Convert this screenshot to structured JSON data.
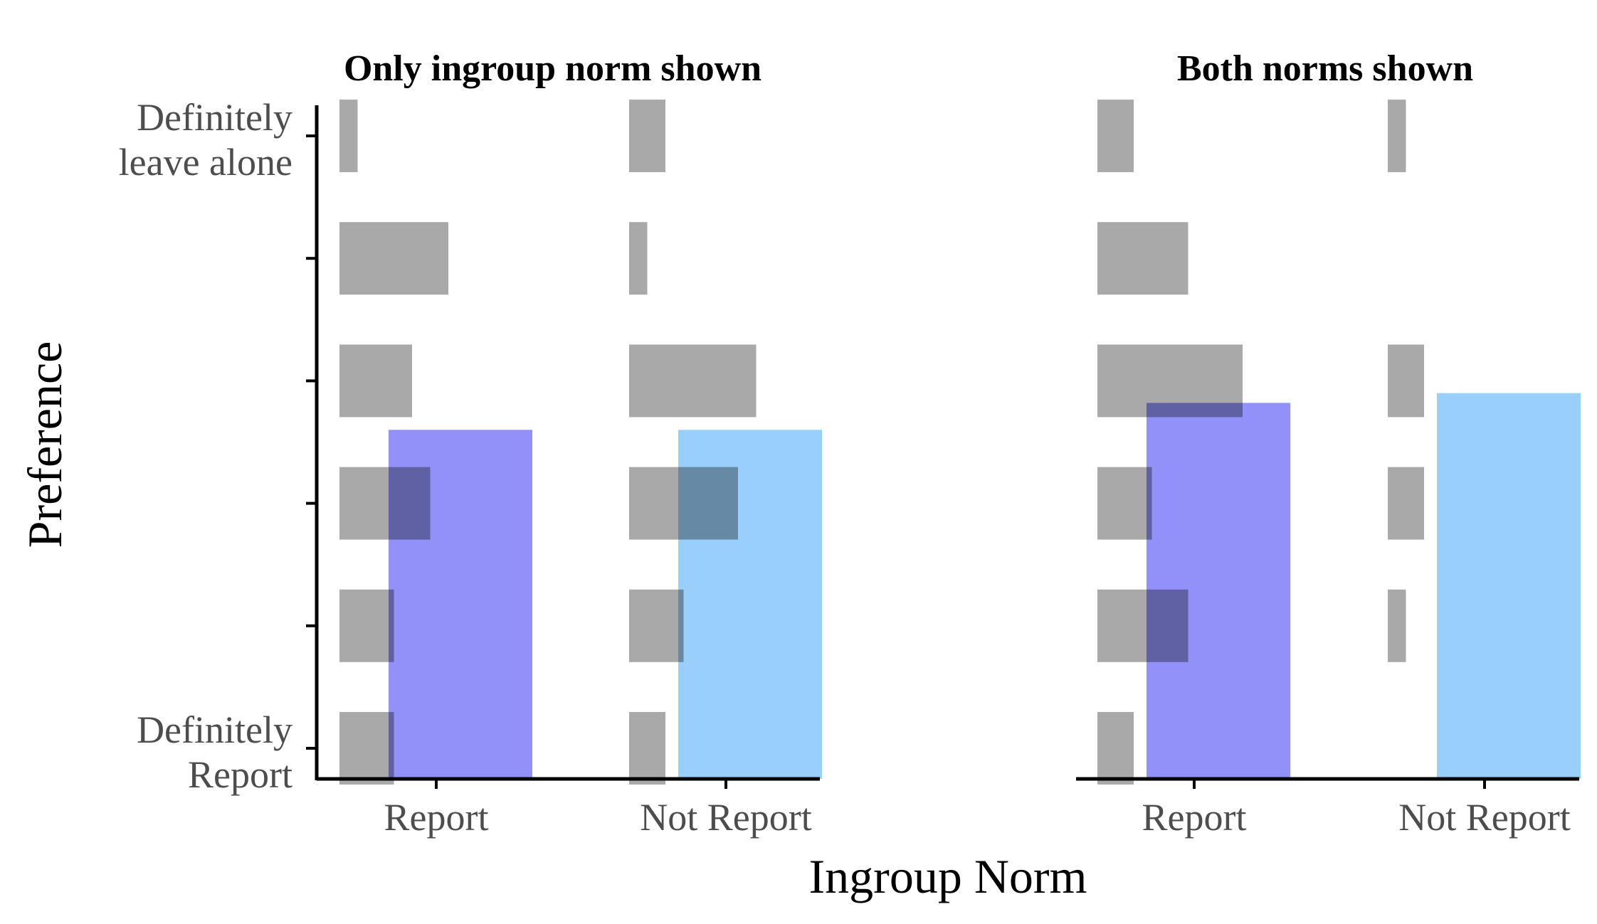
{
  "chart_data": {
    "type": "bar",
    "xlabel": "Ingroup Norm",
    "ylabel": "Preference",
    "y_tick_labels": [
      {
        "level": 1,
        "lines": [
          "Definitely",
          "Report"
        ]
      },
      {
        "level": 6,
        "lines": [
          "Definitely",
          "leave alone"
        ]
      }
    ],
    "y_levels": [
      1,
      2,
      3,
      4,
      5,
      6
    ],
    "ylim": [
      0.75,
      6.25
    ],
    "categories": [
      "Report",
      "Not Report"
    ],
    "colors": {
      "Report": "#9191f9",
      "Not Report": "#99cffb",
      "distribution": "#a6a6a6"
    },
    "panels": [
      {
        "title": "Only ingroup norm shown",
        "bars": [
          {
            "category": "Report",
            "mean": 3.6
          },
          {
            "category": "Not Report",
            "mean": 3.6
          }
        ],
        "distributions": [
          {
            "category": "Report",
            "counts": [
              3,
              3,
              5,
              4,
              6,
              1
            ]
          },
          {
            "category": "Not Report",
            "counts": [
              2,
              3,
              6,
              7,
              1,
              2
            ]
          }
        ]
      },
      {
        "title": "Both norms shown",
        "bars": [
          {
            "category": "Report",
            "mean": 3.82
          },
          {
            "category": "Not Report",
            "mean": 3.9
          }
        ],
        "distributions": [
          {
            "category": "Report",
            "counts": [
              2,
              5,
              3,
              8,
              5,
              2
            ]
          },
          {
            "category": "Not Report",
            "counts": [
              0,
              1,
              2,
              2,
              0,
              1
            ]
          }
        ]
      }
    ]
  }
}
